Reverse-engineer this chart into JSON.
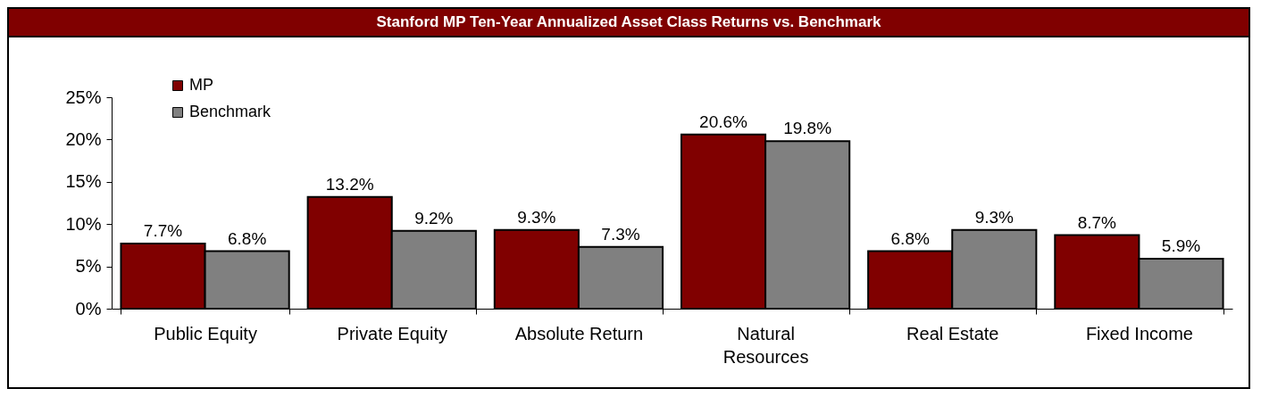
{
  "chart_data": {
    "type": "bar",
    "title": "Stanford MP Ten-Year Annualized Asset Class Returns vs. Benchmark",
    "categories": [
      "Public Equity",
      "Private Equity",
      "Absolute Return",
      "Natural Resources",
      "Real Estate",
      "Fixed Income"
    ],
    "series": [
      {
        "name": "MP",
        "color": "#800000",
        "values": [
          7.7,
          13.2,
          9.3,
          20.6,
          6.8,
          8.7
        ],
        "value_labels": [
          "7.7%",
          "13.2%",
          "9.3%",
          "20.6%",
          "6.8%",
          "8.7%"
        ]
      },
      {
        "name": "Benchmark",
        "color": "#808080",
        "values": [
          6.8,
          9.2,
          7.3,
          19.8,
          9.3,
          5.9
        ],
        "value_labels": [
          "6.8%",
          "9.2%",
          "7.3%",
          "19.8%",
          "9.3%",
          "5.9%"
        ]
      }
    ],
    "ylim": [
      0,
      25
    ],
    "yticks": [
      {
        "value": 0,
        "label": "0%"
      },
      {
        "value": 5,
        "label": "5%"
      },
      {
        "value": 10,
        "label": "10%"
      },
      {
        "value": 15,
        "label": "15%"
      },
      {
        "value": 20,
        "label": "20%"
      },
      {
        "value": 25,
        "label": "25%"
      }
    ],
    "grid": false,
    "legend": "top left"
  }
}
